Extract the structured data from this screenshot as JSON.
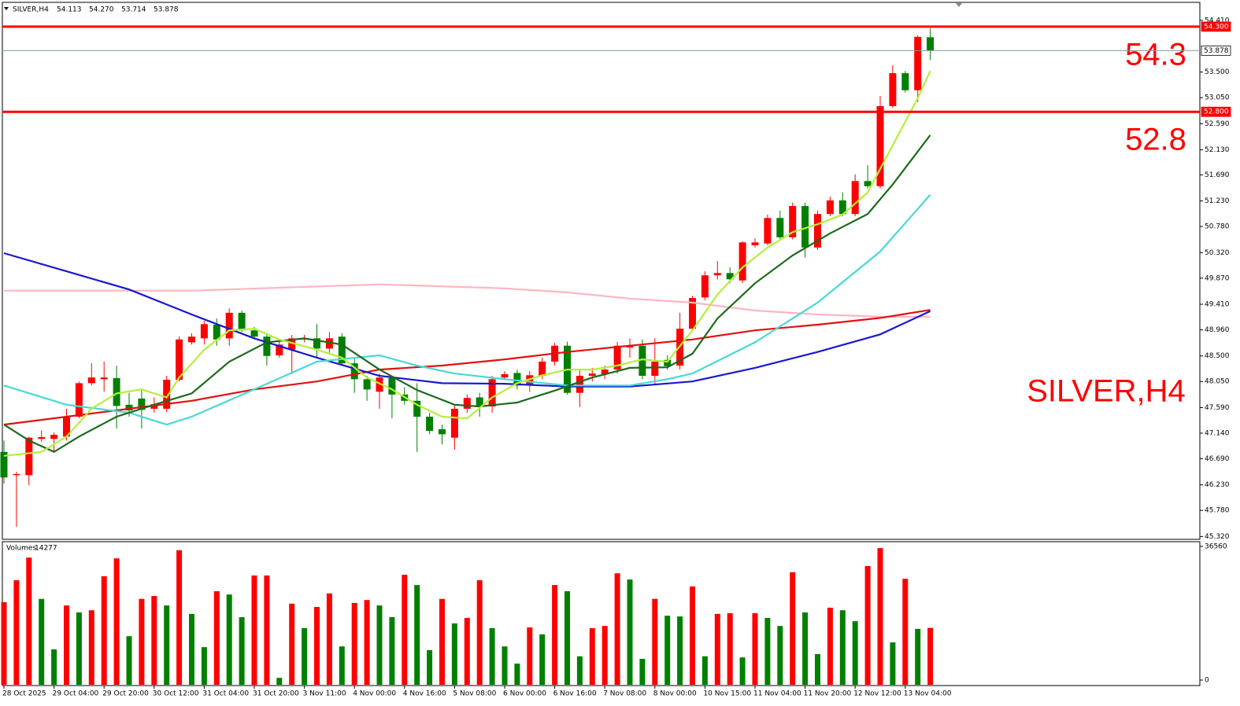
{
  "chart_data": {
    "type": "candlestick",
    "title": "SILVER,H4",
    "header_ohlc": [
      "54.113",
      "54.270",
      "53.714",
      "53.878"
    ],
    "categories": [
      "28 Oct 2025",
      null,
      null,
      null,
      "29 Oct 04:00",
      null,
      null,
      null,
      "29 Oct 20:00",
      null,
      null,
      null,
      "30 Oct 12:00",
      null,
      null,
      null,
      "31 Oct 04:00",
      null,
      null,
      null,
      "31 Oct 20:00",
      null,
      null,
      null,
      "3 Nov 11:00",
      null,
      null,
      null,
      "4 Nov 00:00",
      null,
      null,
      null,
      "4 Nov 16:00",
      null,
      null,
      null,
      "5 Nov 08:00",
      null,
      null,
      null,
      "6 Nov 00:00",
      null,
      null,
      null,
      "6 Nov 16:00",
      null,
      null,
      null,
      "7 Nov 08:00",
      null,
      null,
      null,
      "8 Nov 00:00",
      null,
      null,
      null,
      "10 Nov 15:00",
      null,
      null,
      null,
      "11 Nov 04:00",
      null,
      null,
      null,
      "11 Nov 20:00",
      null,
      null,
      null,
      "12 Nov 12:00",
      null,
      null,
      null,
      "13 Nov 04:00",
      null,
      null
    ],
    "open": [
      46.81,
      46.4,
      46.4,
      47.04,
      47.04,
      47.08,
      47.43,
      48.02,
      48.09,
      48.11,
      47.64,
      47.75,
      47.57,
      47.57,
      48.08,
      48.74,
      48.81,
      49.05,
      48.81,
      49.26,
      48.95,
      48.84,
      48.51,
      48.61,
      48.79,
      48.81,
      48.63,
      48.84,
      48.37,
      48.09,
      47.87,
      48.11,
      47.82,
      47.71,
      47.43,
      47.21,
      47.06,
      47.57,
      47.77,
      47.61,
      48.12,
      48.2,
      47.98,
      48.15,
      48.4,
      48.68,
      47.85,
      48.15,
      48.18,
      48.26,
      48.65,
      48.68,
      48.15,
      48.43,
      48.33,
      48.98,
      49.53,
      49.92,
      49.96,
      49.83,
      50.45,
      50.48,
      50.93,
      50.59,
      51.14,
      50.41,
      51.0,
      51.24,
      51.0,
      51.58,
      51.49,
      52.9,
      53.48,
      53.18,
      54.113
    ],
    "high": [
      47.01,
      46.46,
      47.08,
      47.19,
      47.15,
      47.57,
      48.05,
      48.37,
      48.4,
      48.33,
      47.85,
      47.91,
      47.77,
      48.15,
      48.84,
      48.9,
      49.12,
      49.16,
      49.34,
      49.3,
      49.01,
      48.9,
      48.76,
      48.87,
      48.87,
      49.06,
      48.92,
      48.9,
      48.47,
      48.15,
      48.19,
      48.15,
      47.95,
      48.02,
      47.5,
      47.29,
      47.64,
      47.82,
      47.85,
      48.15,
      48.23,
      48.26,
      48.23,
      48.47,
      48.73,
      48.75,
      48.26,
      48.29,
      48.33,
      48.75,
      48.81,
      48.79,
      48.81,
      48.51,
      49.26,
      49.56,
      49.99,
      50.17,
      50.06,
      50.52,
      50.57,
      50.99,
      51.06,
      51.2,
      51.2,
      51.06,
      51.31,
      51.38,
      51.7,
      51.86,
      53.08,
      53.62,
      53.52,
      54.15,
      54.27
    ],
    "low": [
      46.25,
      45.49,
      46.22,
      46.99,
      46.81,
      47.01,
      47.4,
      47.98,
      47.87,
      47.22,
      47.43,
      47.22,
      47.5,
      47.51,
      48.05,
      48.7,
      48.7,
      48.68,
      48.68,
      48.92,
      48.79,
      48.33,
      48.47,
      48.18,
      48.74,
      48.47,
      48.56,
      48.33,
      47.85,
      47.71,
      47.57,
      47.4,
      47.64,
      46.81,
      47.12,
      46.94,
      46.85,
      47.5,
      47.43,
      47.5,
      48.07,
      47.91,
      47.87,
      48.09,
      48.33,
      47.82,
      47.6,
      48.05,
      48.09,
      48.19,
      48.47,
      48.09,
      48.01,
      48.26,
      48.26,
      48.95,
      49.48,
      49.85,
      49.78,
      49.78,
      50.41,
      50.45,
      50.55,
      50.55,
      50.23,
      50.37,
      50.96,
      50.96,
      50.96,
      51.45,
      51.45,
      52.87,
      53.14,
      52.97,
      53.714
    ],
    "close": [
      46.36,
      46.42,
      47.06,
      47.07,
      47.11,
      47.43,
      48.02,
      48.12,
      48.12,
      47.62,
      47.54,
      47.55,
      47.65,
      48.08,
      48.79,
      48.84,
      49.06,
      48.79,
      49.26,
      48.95,
      48.84,
      48.5,
      48.7,
      48.81,
      48.81,
      48.63,
      48.81,
      48.37,
      48.09,
      47.91,
      48.12,
      47.82,
      47.71,
      47.43,
      47.18,
      47.12,
      47.57,
      47.76,
      47.6,
      48.09,
      48.18,
      47.98,
      48.16,
      48.4,
      48.68,
      47.85,
      48.15,
      48.19,
      48.26,
      48.68,
      48.68,
      48.15,
      48.4,
      48.32,
      48.98,
      49.52,
      49.92,
      49.96,
      49.85,
      50.5,
      50.5,
      50.93,
      50.59,
      51.14,
      50.41,
      51.0,
      51.24,
      51.0,
      51.58,
      51.49,
      52.9,
      53.48,
      53.18,
      54.12,
      53.878
    ],
    "up_color": "#ff0000",
    "down_color": "#008000",
    "overlays": [
      {
        "color": "#ffb6c1",
        "x": [
          0,
          15,
          30,
          40,
          45,
          50,
          55,
          60,
          65,
          70,
          74
        ],
        "values": [
          49.65,
          49.65,
          49.76,
          49.69,
          49.62,
          49.51,
          49.44,
          49.3,
          49.23,
          49.19,
          49.19
        ]
      },
      {
        "color": "#e31010",
        "x": [
          0,
          10,
          15,
          20,
          25,
          30,
          35,
          40,
          45,
          50,
          55,
          60,
          65,
          70,
          74
        ],
        "values": [
          47.29,
          47.57,
          47.71,
          47.91,
          48.05,
          48.26,
          48.33,
          48.44,
          48.57,
          48.68,
          48.79,
          48.95,
          49.05,
          49.17,
          49.31
        ]
      },
      {
        "color": "#1818d0",
        "x": [
          0,
          5,
          10,
          15,
          20,
          25,
          30,
          35,
          40,
          45,
          50,
          55,
          60,
          65,
          70,
          74
        ],
        "values": [
          50.31,
          49.99,
          49.67,
          49.23,
          48.81,
          48.47,
          48.15,
          48.02,
          48.01,
          47.96,
          47.96,
          48.05,
          48.29,
          48.57,
          48.88,
          49.29
        ]
      },
      {
        "color": "#48d8d8",
        "x": [
          0,
          5,
          10,
          13,
          15,
          20,
          25,
          30,
          33,
          36,
          40,
          45,
          50,
          53,
          55,
          60,
          65,
          70,
          74
        ],
        "values": [
          47.98,
          47.64,
          47.5,
          47.29,
          47.43,
          47.91,
          48.4,
          48.51,
          48.33,
          48.19,
          48.09,
          47.98,
          47.98,
          48.09,
          48.19,
          48.74,
          49.44,
          50.34,
          51.34
        ]
      },
      {
        "color": "#1b6b1b",
        "x": [
          0,
          2,
          4,
          6,
          9,
          12,
          15,
          18,
          21,
          24,
          27,
          30,
          33,
          36,
          38,
          41,
          44,
          47,
          50,
          53,
          55,
          57,
          60,
          63,
          66,
          69,
          71,
          74
        ],
        "values": [
          47.29,
          47.01,
          46.81,
          47.08,
          47.43,
          47.64,
          47.84,
          48.4,
          48.74,
          48.81,
          48.7,
          48.26,
          47.9,
          47.64,
          47.61,
          47.68,
          47.89,
          48.12,
          48.29,
          48.3,
          48.54,
          49.16,
          49.78,
          50.27,
          50.66,
          51.0,
          51.52,
          52.39
        ]
      },
      {
        "color": "#b4f03c",
        "x": [
          0,
          3,
          5,
          7,
          9,
          11,
          13,
          14,
          16,
          18,
          20,
          22,
          25,
          27,
          29,
          31,
          33,
          35,
          37,
          39,
          41,
          43,
          45,
          47,
          49,
          51,
          53,
          55,
          57,
          59,
          61,
          63,
          65,
          67,
          69,
          71,
          73,
          74
        ],
        "values": [
          46.74,
          46.81,
          47.08,
          47.57,
          47.84,
          47.91,
          47.77,
          48.12,
          48.61,
          48.95,
          48.98,
          48.79,
          48.61,
          48.47,
          48.12,
          47.91,
          47.64,
          47.43,
          47.4,
          47.77,
          48.02,
          48.16,
          48.26,
          48.26,
          48.33,
          48.44,
          48.4,
          48.95,
          49.58,
          50.06,
          50.41,
          50.68,
          50.82,
          50.99,
          51.38,
          52.21,
          53.04,
          53.52
        ]
      }
    ],
    "ylim": [
      45.27,
      54.7
    ],
    "yticks": [
      {
        "value": 54.41,
        "label": "54.410"
      },
      {
        "value": 53.5,
        "label": "53.500"
      },
      {
        "value": 53.05,
        "label": "53.050"
      },
      {
        "value": 52.59,
        "label": "52.590"
      },
      {
        "value": 52.13,
        "label": "52.130"
      },
      {
        "value": 51.69,
        "label": "51.690"
      },
      {
        "value": 51.23,
        "label": "51.230"
      },
      {
        "value": 50.78,
        "label": "50.780"
      },
      {
        "value": 50.32,
        "label": "50.320"
      },
      {
        "value": 49.87,
        "label": "49.870"
      },
      {
        "value": 49.41,
        "label": "49.410"
      },
      {
        "value": 48.96,
        "label": "48.960"
      },
      {
        "value": 48.5,
        "label": "48.500"
      },
      {
        "value": 48.05,
        "label": "48.050"
      },
      {
        "value": 47.59,
        "label": "47.590"
      },
      {
        "value": 47.14,
        "label": "47.140"
      },
      {
        "value": 46.69,
        "label": "46.690"
      },
      {
        "value": 46.23,
        "label": "46.230"
      },
      {
        "value": 45.78,
        "label": "45.780"
      },
      {
        "value": 45.32,
        "label": "45.320"
      }
    ],
    "hlines": [
      {
        "value": 54.3,
        "label": "54.300",
        "color": "#ff0000",
        "width": 3
      },
      {
        "value": 52.8,
        "label": "52.800",
        "color": "#ff0000",
        "width": 3
      },
      {
        "value": 53.878,
        "color": "#8c9aa8",
        "width": 1
      }
    ],
    "annotations": [
      "54.3",
      "52.8",
      "SILVER,H4"
    ],
    "volume": {
      "label": "Volumes",
      "values": [
        21300,
        27300,
        33500,
        22200,
        8400,
        20400,
        18500,
        19100,
        28400,
        33300,
        12000,
        22200,
        23000,
        20400,
        35500,
        18100,
        9000,
        24300,
        23400,
        17200,
        28600,
        28600,
        600,
        20900,
        14200,
        20000,
        23700,
        9200,
        21100,
        21900,
        20400,
        17200,
        28800,
        26000,
        8200,
        22200,
        15500,
        17000,
        27300,
        14200,
        9200,
        4500,
        14400,
        12500,
        26000,
        24300,
        6500,
        14200,
        14800,
        29200,
        27500,
        5800,
        22200,
        17600,
        17400,
        25600,
        6500,
        18100,
        18300,
        6200,
        18300,
        17000,
        14800,
        29500,
        18500,
        7100,
        19800,
        19100,
        16100,
        31200,
        36100,
        10300,
        27700,
        14000,
        14277
      ],
      "ylim": [
        0,
        36560
      ],
      "yticks": [
        0,
        36560
      ]
    }
  }
}
